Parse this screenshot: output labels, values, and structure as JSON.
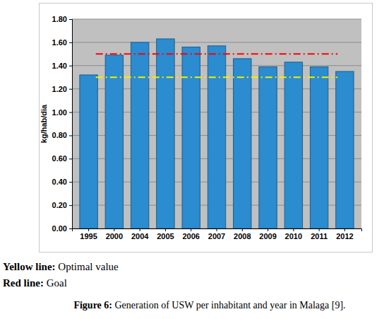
{
  "chart_data": {
    "type": "bar",
    "y_label": "kg/hab/dia",
    "categories": [
      "1995",
      "2000",
      "2004",
      "2005",
      "2006",
      "2007",
      "2008",
      "2009",
      "2010",
      "2011",
      "2012"
    ],
    "values": [
      1.32,
      1.49,
      1.6,
      1.63,
      1.56,
      1.57,
      1.46,
      1.39,
      1.43,
      1.39,
      1.35
    ],
    "color": "#2b8ccf",
    "ylim": [
      0,
      1.8
    ],
    "yticks": [
      {
        "value": 0,
        "label": "0.00"
      },
      {
        "value": 0.2,
        "label": "0.20"
      },
      {
        "value": 0.4,
        "label": "0.40"
      },
      {
        "value": 0.6,
        "label": "0.60"
      },
      {
        "value": 0.8,
        "label": "0.80"
      },
      {
        "value": 1.0,
        "label": "1.00"
      },
      {
        "value": 1.2,
        "label": "1.20"
      },
      {
        "value": 1.4,
        "label": "1.40"
      },
      {
        "value": 1.6,
        "label": "1.60"
      },
      {
        "value": 1.8,
        "label": "1.80"
      }
    ],
    "grid": true,
    "reference_lines": [
      {
        "label": "Yellow line:",
        "name": "Optimal value",
        "value": 1.3,
        "color": "#f0f000",
        "line_style": "dashdot"
      },
      {
        "label": "Red line:",
        "name": "Goal",
        "value": 1.5,
        "color": "#ff0000",
        "line_style": "dashdot"
      }
    ],
    "caption": {
      "label": "Figure 6:",
      "text": "Generation of USW per inhabitant and year in Malaga [9]."
    }
  }
}
